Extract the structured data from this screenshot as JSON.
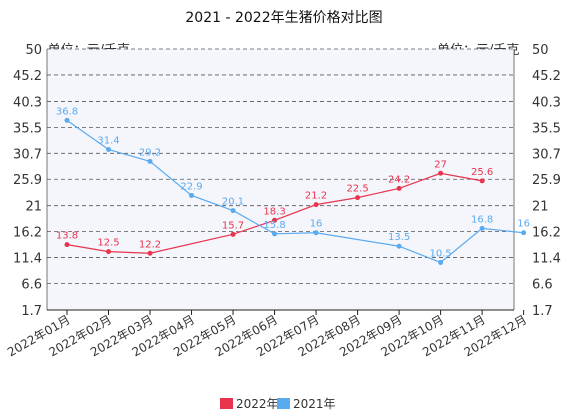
{
  "chart_data": {
    "type": "line",
    "title": "2021 - 2022年生猪价格对比图",
    "unit_left": "单位：元/千克",
    "unit_right": "单位：元/千克",
    "y_ticks": [
      50,
      45.2,
      40.3,
      35.5,
      30.7,
      25.9,
      21,
      16.2,
      11.4,
      6.6,
      1.7
    ],
    "ylim": [
      1.7,
      50
    ],
    "categories": [
      "2022年01月",
      "2022年02月",
      "2022年03月",
      "2022年04月",
      "2022年05月",
      "2022年06月",
      "2022年07月",
      "2022年08月",
      "2022年09月",
      "2022年10月",
      "2022年11月",
      "2022年12月"
    ],
    "grid": true,
    "legend_position": "bottom",
    "series": [
      {
        "name": "2022年",
        "color": "#e8344e",
        "values": [
          13.8,
          12.5,
          12.2,
          null,
          15.7,
          18.3,
          21.2,
          22.5,
          24.2,
          27,
          25.6,
          null
        ],
        "labels": [
          "13.8",
          "12.5",
          "12.2",
          null,
          "15.7",
          "18.3",
          "21.2",
          "22.5",
          "24.2",
          "27",
          "25.6",
          null
        ]
      },
      {
        "name": "2021年",
        "color": "#5aaaf0",
        "values": [
          36.8,
          31.4,
          29.2,
          22.9,
          20.1,
          15.8,
          16,
          null,
          13.5,
          10.5,
          16.8,
          16
        ],
        "labels": [
          "36.8",
          "31.4",
          "29.2",
          "22.9",
          "20.1",
          "15.8",
          "16",
          null,
          "13.5",
          "10.5",
          "16.8",
          "16"
        ]
      }
    ]
  }
}
